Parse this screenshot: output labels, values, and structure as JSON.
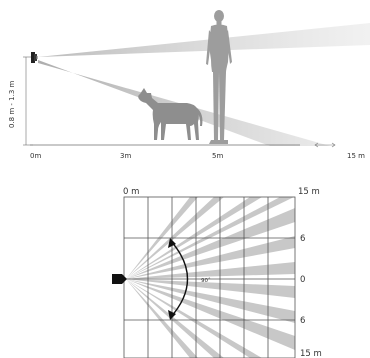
{
  "side_view": {
    "height_label": "0.8 m - 1.3 m",
    "distance_labels": [
      "0m",
      "3m",
      "5m",
      "15 m"
    ]
  },
  "top_view": {
    "top_labels": [
      "0 m",
      "15 m"
    ],
    "right_labels": [
      "6",
      "0",
      "6",
      "15 m"
    ],
    "angle_label": "90˚"
  }
}
